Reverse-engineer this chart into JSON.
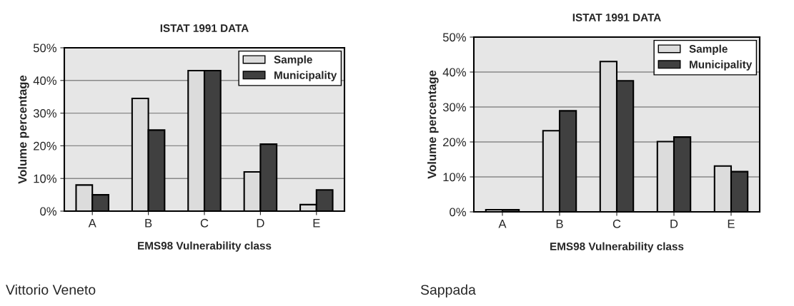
{
  "chart_data": [
    {
      "type": "bar",
      "title": "ISTAT 1991 DATA",
      "xlabel": "EMS98 Vulnerability class",
      "ylabel": "Volume percentage",
      "categories": [
        "A",
        "B",
        "C",
        "D",
        "E"
      ],
      "series": [
        {
          "name": "Sample",
          "color": "#dcdcdc",
          "values": [
            8,
            34.5,
            43,
            12,
            2
          ]
        },
        {
          "name": "Municipality",
          "color": "#404040",
          "values": [
            5,
            24.8,
            43,
            20.5,
            6.5
          ]
        }
      ],
      "ylim": [
        0,
        50
      ],
      "yticks": [
        {
          "value": 0,
          "label": "0%"
        },
        {
          "value": 10,
          "label": "10%"
        },
        {
          "value": 20,
          "label": "20%"
        },
        {
          "value": 30,
          "label": "30%"
        },
        {
          "value": 40,
          "label": "40%"
        },
        {
          "value": 50,
          "label": "50%"
        }
      ],
      "grid": "y",
      "legend": "top right",
      "annotations": [
        "Vittorio Veneto"
      ]
    },
    {
      "type": "bar",
      "title": "ISTAT 1991 DATA",
      "xlabel": "EMS98 Vulnerability class",
      "ylabel": "Volume percentage",
      "categories": [
        "A",
        "B",
        "C",
        "D",
        "E"
      ],
      "series": [
        {
          "name": "Sample",
          "color": "#dcdcdc",
          "values": [
            0.6,
            23.2,
            43,
            20.1,
            13.1
          ]
        },
        {
          "name": "Municipality",
          "color": "#404040",
          "values": [
            0.6,
            28.9,
            37.5,
            21.4,
            11.5
          ]
        }
      ],
      "ylim": [
        0,
        50
      ],
      "yticks": [
        {
          "value": 0,
          "label": "0%"
        },
        {
          "value": 10,
          "label": "10%"
        },
        {
          "value": 20,
          "label": "20%"
        },
        {
          "value": 30,
          "label": "30%"
        },
        {
          "value": 40,
          "label": "40%"
        },
        {
          "value": 50,
          "label": "50%"
        }
      ],
      "grid": "y",
      "legend": "top right",
      "annotations": [
        "Sappada"
      ]
    }
  ]
}
